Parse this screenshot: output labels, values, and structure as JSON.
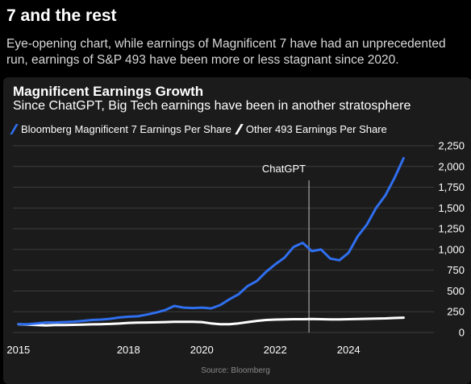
{
  "page": {
    "headline": "7 and the rest",
    "subtext": "Eye-opening chart, while earnings of Magnificent 7 have had an unprecedented run, earnings of S&P 493 have been more or less stagnant since 2020."
  },
  "source_note": "Source: Bloomberg",
  "colors": {
    "background": "#000000",
    "card": "#1b1b1b",
    "mag7_line": "#2f6fef",
    "other493_line": "#ffffff",
    "grid": "#3c3c3c",
    "marker": "#bfbfbf"
  },
  "chart_data": {
    "type": "line",
    "title": "Magnificent Earnings Growth",
    "subtitle": "Since ChatGPT, Big Tech earnings have been in another stratosphere",
    "xlabel": "",
    "ylabel": "",
    "xlim": [
      2014.85,
      2026.15
    ],
    "ylim": [
      0,
      2250
    ],
    "x_ticks": [
      2015,
      2018,
      2020,
      2022,
      2024
    ],
    "y_ticks": [
      0,
      250,
      500,
      750,
      1000,
      1250,
      1500,
      1750,
      2000,
      2250
    ],
    "y_tick_labels": [
      "0",
      "250",
      "500",
      "750",
      "1,000",
      "1,250",
      "1,500",
      "1,750",
      "2,000",
      "2,250"
    ],
    "y_axis_side": "right",
    "grid": "horizontal",
    "legend_position": "top-left",
    "annotations": [
      {
        "label": "ChatGPT",
        "x": 2022.92
      }
    ],
    "series": [
      {
        "name": "Bloomberg Magnificent 7 Earnings Per Share",
        "color": "#2f6fef",
        "x": [
          2015.0,
          2015.25,
          2015.5,
          2015.75,
          2016.0,
          2016.25,
          2016.5,
          2016.75,
          2017.0,
          2017.25,
          2017.5,
          2017.75,
          2018.0,
          2018.25,
          2018.5,
          2018.75,
          2019.0,
          2019.25,
          2019.5,
          2019.75,
          2020.0,
          2020.25,
          2020.5,
          2020.75,
          2021.0,
          2021.25,
          2021.5,
          2021.75,
          2022.0,
          2022.25,
          2022.5,
          2022.75,
          2023.0,
          2023.25,
          2023.5,
          2023.75,
          2024.0,
          2024.25,
          2024.5,
          2024.75,
          2025.0,
          2025.25,
          2025.5
        ],
        "values": [
          100,
          100,
          110,
          120,
          120,
          125,
          130,
          140,
          150,
          155,
          165,
          180,
          190,
          195,
          215,
          240,
          270,
          320,
          300,
          295,
          300,
          290,
          330,
          400,
          460,
          560,
          620,
          730,
          820,
          900,
          1030,
          1080,
          980,
          1000,
          890,
          870,
          960,
          1160,
          1300,
          1500,
          1650,
          1860,
          2100
        ]
      },
      {
        "name": "Other 493 Earnings Per Share",
        "color": "#ffffff",
        "x": [
          2015.0,
          2015.25,
          2015.5,
          2015.75,
          2016.0,
          2016.25,
          2016.5,
          2016.75,
          2017.0,
          2017.25,
          2017.5,
          2017.75,
          2018.0,
          2018.25,
          2018.5,
          2018.75,
          2019.0,
          2019.25,
          2019.5,
          2019.75,
          2020.0,
          2020.25,
          2020.5,
          2020.75,
          2021.0,
          2021.25,
          2021.5,
          2021.75,
          2022.0,
          2022.25,
          2022.5,
          2022.75,
          2023.0,
          2023.25,
          2023.5,
          2023.75,
          2024.0,
          2024.25,
          2024.5,
          2024.75,
          2025.0,
          2025.25,
          2025.5
        ],
        "values": [
          100,
          95,
          90,
          85,
          90,
          90,
          92,
          95,
          98,
          100,
          103,
          108,
          115,
          118,
          120,
          122,
          125,
          128,
          128,
          128,
          125,
          110,
          100,
          100,
          110,
          125,
          140,
          150,
          155,
          158,
          160,
          160,
          162,
          160,
          158,
          158,
          160,
          162,
          165,
          168,
          170,
          175,
          178
        ]
      }
    ]
  }
}
